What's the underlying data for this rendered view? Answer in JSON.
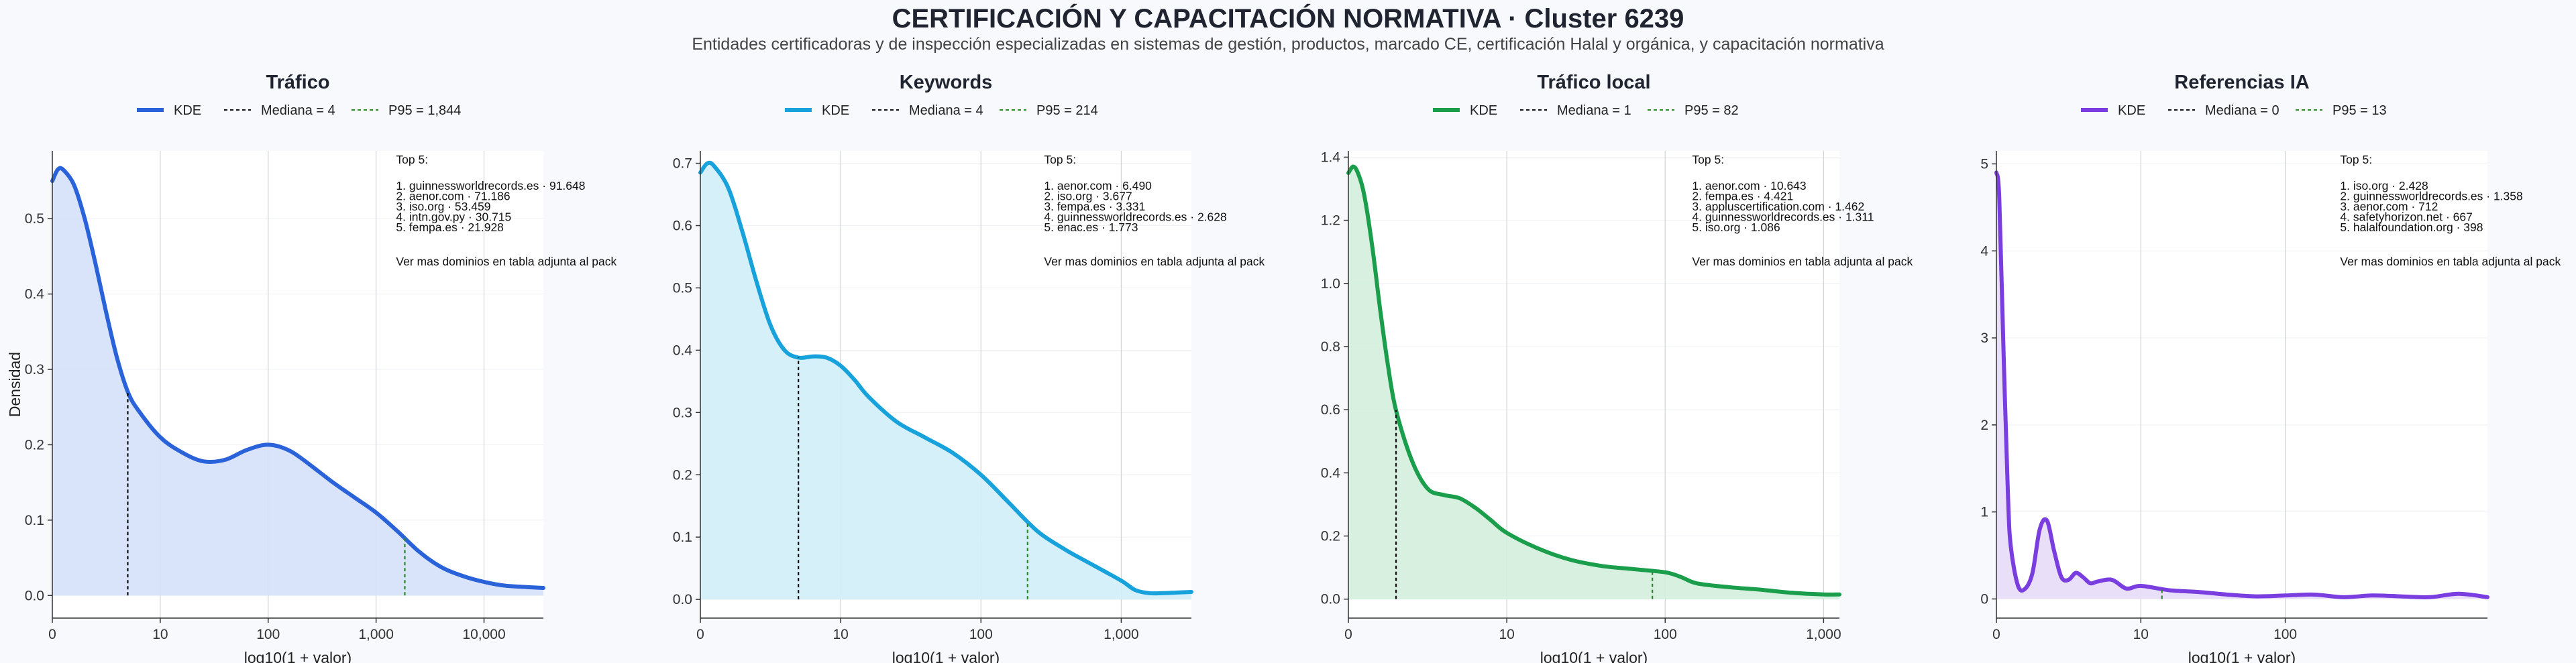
{
  "title": "CERTIFICACIÓN Y CAPACITACIÓN NORMATIVA · Cluster 6239",
  "subtitle": "Entidades certificadoras y de inspección especializadas en sistemas de gestión, productos, marcado CE, certificación Halal y orgánica, y capacitación normativa",
  "chart_data": [
    {
      "type": "area",
      "title": "Tráfico",
      "xlabel": "log10(1 + valor)",
      "ylabel": "Densidad",
      "color": "#2a62d9",
      "fill": "#d5e0f8",
      "x_scale": "log10(1+x)",
      "xlim": [
        0,
        4.55
      ],
      "ylim": [
        -0.03,
        0.59
      ],
      "xticks": [
        0,
        1,
        2,
        3,
        4
      ],
      "xtick_labels": [
        "0",
        "10",
        "100",
        "1,000",
        "10,000"
      ],
      "yticks": [
        0,
        0.1,
        0.2,
        0.3,
        0.4,
        0.5
      ],
      "ytick_labels": [
        "0.0",
        "0.1",
        "0.2",
        "0.3",
        "0.4",
        "0.5"
      ],
      "legend": {
        "kde": "KDE",
        "median": "Mediana = 4",
        "p95": "P95 = 1,844"
      },
      "median": 4,
      "p95": 1844,
      "kde": {
        "x": [
          0,
          0.05,
          0.1,
          0.2,
          0.3,
          0.4,
          0.5,
          0.6,
          0.7,
          0.8,
          1.0,
          1.2,
          1.4,
          1.6,
          1.8,
          2.0,
          2.2,
          2.4,
          2.6,
          2.8,
          3.0,
          3.2,
          3.4,
          3.6,
          3.8,
          4.0,
          4.2,
          4.55
        ],
        "y": [
          0.55,
          0.565,
          0.565,
          0.545,
          0.5,
          0.44,
          0.375,
          0.315,
          0.27,
          0.245,
          0.21,
          0.19,
          0.178,
          0.18,
          0.193,
          0.2,
          0.192,
          0.172,
          0.15,
          0.13,
          0.11,
          0.085,
          0.058,
          0.038,
          0.026,
          0.018,
          0.013,
          0.01
        ]
      },
      "annotation": {
        "heading": "Top 5:",
        "items": [
          "1. guinnessworldrecords.es · 91.648",
          "2. aenor.com · 71.186",
          "3. iso.org · 53.459",
          "4. intn.gov.py · 30.715",
          "5. fempa.es · 21.928"
        ],
        "footer": "Ver mas dominios en tabla adjunta al pack"
      }
    },
    {
      "type": "area",
      "title": "Keywords",
      "xlabel": "log10(1 + valor)",
      "ylabel": "",
      "color": "#17a2dc",
      "fill": "#d2eefa",
      "x_scale": "log10(1+x)",
      "xlim": [
        0,
        3.5
      ],
      "ylim": [
        -0.03,
        0.72
      ],
      "xticks": [
        0,
        1,
        2,
        3
      ],
      "xtick_labels": [
        "0",
        "10",
        "100",
        "1,000"
      ],
      "yticks": [
        0,
        0.1,
        0.2,
        0.3,
        0.4,
        0.5,
        0.6,
        0.7
      ],
      "ytick_labels": [
        "0.0",
        "0.1",
        "0.2",
        "0.3",
        "0.4",
        "0.5",
        "0.6",
        "0.7"
      ],
      "legend": {
        "kde": "KDE",
        "median": "Mediana = 4",
        "p95": "P95 = 214"
      },
      "median": 4,
      "p95": 214,
      "kde": {
        "x": [
          0,
          0.05,
          0.1,
          0.2,
          0.3,
          0.4,
          0.5,
          0.6,
          0.7,
          0.8,
          0.9,
          1.0,
          1.1,
          1.2,
          1.4,
          1.6,
          1.8,
          2.0,
          2.2,
          2.4,
          2.6,
          2.8,
          3.0,
          3.1,
          3.2,
          3.3,
          3.5
        ],
        "y": [
          0.685,
          0.7,
          0.695,
          0.66,
          0.59,
          0.51,
          0.44,
          0.4,
          0.388,
          0.39,
          0.388,
          0.375,
          0.352,
          0.325,
          0.285,
          0.26,
          0.235,
          0.2,
          0.155,
          0.11,
          0.08,
          0.055,
          0.03,
          0.015,
          0.01,
          0.01,
          0.012
        ]
      },
      "annotation": {
        "heading": "Top 5:",
        "items": [
          "1. aenor.com · 6.490",
          "2. iso.org · 3.677",
          "3. fempa.es · 3.331",
          "4. guinnessworldrecords.es · 2.628",
          "5. enac.es · 1.773"
        ],
        "footer": "Ver mas dominios en tabla adjunta al pack"
      }
    },
    {
      "type": "area",
      "title": "Tráfico local",
      "xlabel": "log10(1 + valor)",
      "ylabel": "",
      "color": "#1a9e4b",
      "fill": "#d3eedc",
      "x_scale": "log10(1+x)",
      "xlim": [
        0,
        3.1
      ],
      "ylim": [
        -0.06,
        1.42
      ],
      "xticks": [
        0,
        1,
        2,
        3
      ],
      "xtick_labels": [
        "0",
        "10",
        "100",
        "1,000"
      ],
      "yticks": [
        0,
        0.2,
        0.4,
        0.6,
        0.8,
        1.0,
        1.2,
        1.4
      ],
      "ytick_labels": [
        "0.0",
        "0.2",
        "0.4",
        "0.6",
        "0.8",
        "1.0",
        "1.2",
        "1.4"
      ],
      "legend": {
        "kde": "KDE",
        "median": "Mediana = 1",
        "p95": "P95 = 82"
      },
      "median": 1,
      "p95": 82,
      "kde": {
        "x": [
          0,
          0.03,
          0.06,
          0.1,
          0.15,
          0.2,
          0.25,
          0.3,
          0.4,
          0.5,
          0.6,
          0.7,
          0.8,
          0.9,
          1.0,
          1.2,
          1.4,
          1.6,
          1.8,
          2.0,
          2.1,
          2.2,
          2.4,
          2.6,
          2.8,
          3.0,
          3.1
        ],
        "y": [
          1.35,
          1.37,
          1.35,
          1.28,
          1.12,
          0.92,
          0.74,
          0.6,
          0.44,
          0.35,
          0.33,
          0.32,
          0.29,
          0.25,
          0.21,
          0.16,
          0.125,
          0.105,
          0.095,
          0.085,
          0.07,
          0.05,
          0.038,
          0.03,
          0.02,
          0.015,
          0.015
        ]
      },
      "annotation": {
        "heading": "Top 5:",
        "items": [
          "1. aenor.com · 10.643",
          "2. fempa.es · 4.421",
          "3. appluscertification.com · 1.462",
          "4. guinnessworldrecords.es · 1.311",
          "5. iso.org · 1.086"
        ],
        "footer": "Ver mas dominios en tabla adjunta al pack"
      }
    },
    {
      "type": "area",
      "title": "Referencias IA",
      "xlabel": "log10(1 + valor)",
      "ylabel": "",
      "color": "#7a3de0",
      "fill": "#e8dcf7",
      "x_scale": "log10(1+x)",
      "xlim": [
        0,
        3.4
      ],
      "ylim": [
        -0.22,
        5.15
      ],
      "xticks": [
        0,
        1,
        2
      ],
      "xtick_labels": [
        "0",
        "10",
        "100"
      ],
      "yticks": [
        0,
        1,
        2,
        3,
        4,
        5
      ],
      "ytick_labels": [
        "0",
        "1",
        "2",
        "3",
        "4",
        "5"
      ],
      "legend": {
        "kde": "KDE",
        "median": "Mediana = 0",
        "p95": "P95 = 13"
      },
      "median": 0,
      "p95": 13,
      "kde": {
        "x": [
          0,
          0.02,
          0.05,
          0.08,
          0.1,
          0.15,
          0.2,
          0.25,
          0.3,
          0.35,
          0.4,
          0.45,
          0.5,
          0.55,
          0.6,
          0.65,
          0.7,
          0.8,
          0.9,
          1.0,
          1.2,
          1.4,
          1.6,
          1.8,
          2.0,
          2.2,
          2.4,
          2.6,
          2.8,
          3.0,
          3.2,
          3.4
        ],
        "y": [
          4.9,
          4.6,
          2.8,
          1.2,
          0.6,
          0.15,
          0.12,
          0.3,
          0.8,
          0.9,
          0.55,
          0.25,
          0.22,
          0.3,
          0.25,
          0.18,
          0.2,
          0.22,
          0.12,
          0.15,
          0.1,
          0.08,
          0.05,
          0.03,
          0.04,
          0.05,
          0.02,
          0.04,
          0.03,
          0.02,
          0.06,
          0.02
        ]
      },
      "annotation": {
        "heading": "Top 5:",
        "items": [
          "1. iso.org · 2.428",
          "2. guinnessworldrecords.es · 1.358",
          "3. aenor.com · 712",
          "4. safetyhorizon.net · 667",
          "5. halalfoundation.org · 398"
        ],
        "footer": "Ver mas dominios en tabla adjunta al pack"
      }
    }
  ]
}
